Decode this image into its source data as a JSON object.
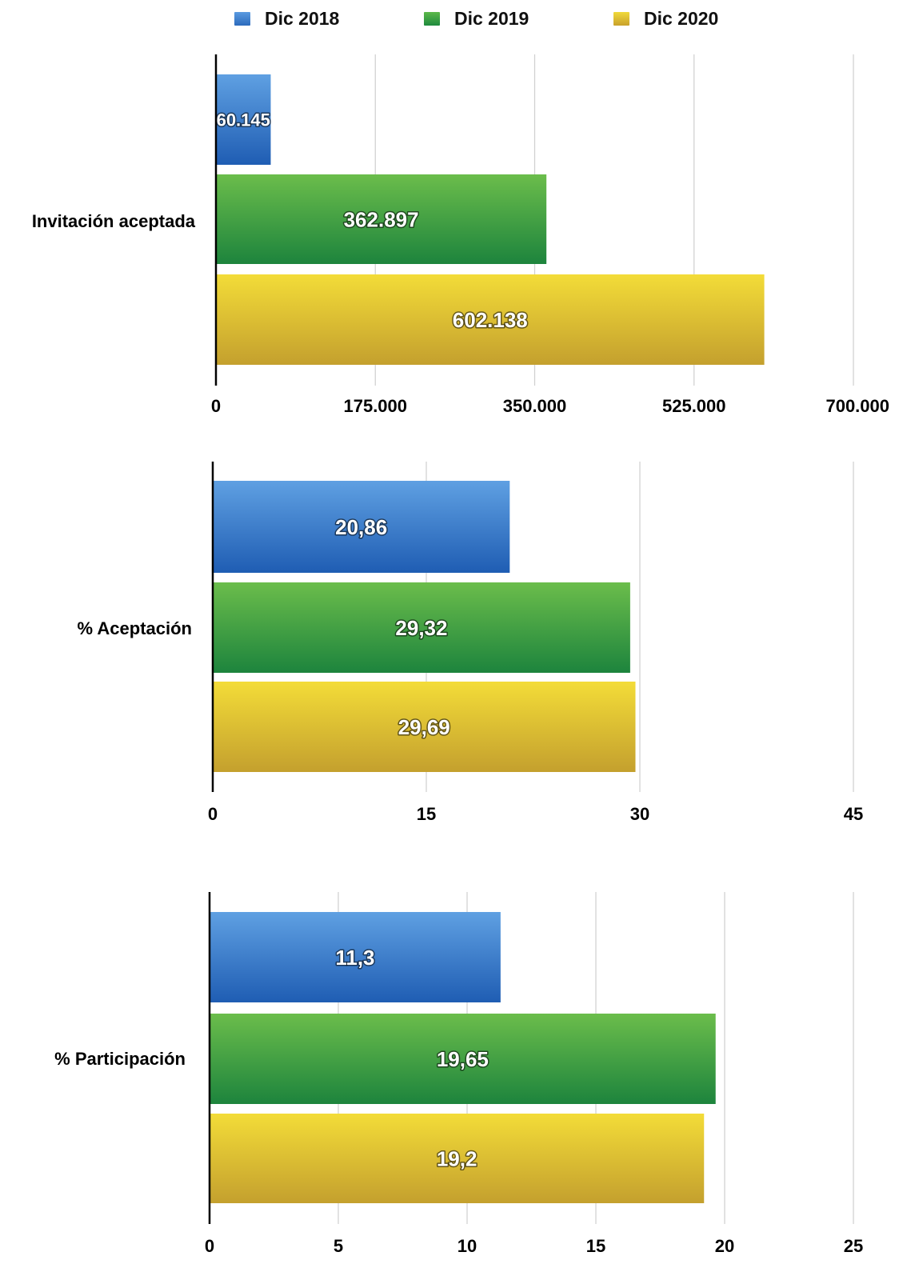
{
  "legend": [
    {
      "label": "Dic 2018",
      "color": "#3a7fcf"
    },
    {
      "label": "Dic 2019",
      "color": "#2f9a44"
    },
    {
      "label": "Dic 2020",
      "color": "#e0c22a"
    }
  ],
  "chart_data": [
    {
      "type": "bar",
      "orientation": "horizontal",
      "categories": [
        "Invitación aceptada"
      ],
      "series": [
        {
          "name": "Dic 2018",
          "values": [
            60145
          ],
          "labels": [
            "60.145"
          ]
        },
        {
          "name": "Dic 2019",
          "values": [
            362897
          ],
          "labels": [
            "362.897"
          ]
        },
        {
          "name": "Dic 2020",
          "values": [
            602138
          ],
          "labels": [
            "602.138"
          ]
        }
      ],
      "xlim": [
        0,
        700000
      ],
      "xticks": [
        0,
        175000,
        350000,
        525000,
        700000
      ],
      "xtick_labels": [
        "0",
        "175.000",
        "350.000",
        "525.000",
        "700.000"
      ],
      "grid": true,
      "legend": "top-center"
    },
    {
      "type": "bar",
      "orientation": "horizontal",
      "categories": [
        "% Aceptación"
      ],
      "series": [
        {
          "name": "Dic 2018",
          "values": [
            20.86
          ],
          "labels": [
            "20,86"
          ]
        },
        {
          "name": "Dic 2019",
          "values": [
            29.32
          ],
          "labels": [
            "29,32"
          ]
        },
        {
          "name": "Dic 2020",
          "values": [
            29.69
          ],
          "labels": [
            "29,69"
          ]
        }
      ],
      "xlim": [
        0,
        45
      ],
      "xticks": [
        0,
        15,
        30,
        45
      ],
      "xtick_labels": [
        "0",
        "15",
        "30",
        "45"
      ],
      "grid": true
    },
    {
      "type": "bar",
      "orientation": "horizontal",
      "categories": [
        "% Participación"
      ],
      "series": [
        {
          "name": "Dic 2018",
          "values": [
            11.3
          ],
          "labels": [
            "11,3"
          ]
        },
        {
          "name": "Dic 2019",
          "values": [
            19.65
          ],
          "labels": [
            "19,65"
          ]
        },
        {
          "name": "Dic 2020",
          "values": [
            19.2
          ],
          "labels": [
            "19,2"
          ]
        }
      ],
      "xlim": [
        0,
        25
      ],
      "xticks": [
        0,
        5,
        10,
        15,
        20,
        25
      ],
      "xtick_labels": [
        "0",
        "5",
        "10",
        "15",
        "20",
        "25"
      ],
      "grid": true
    }
  ]
}
